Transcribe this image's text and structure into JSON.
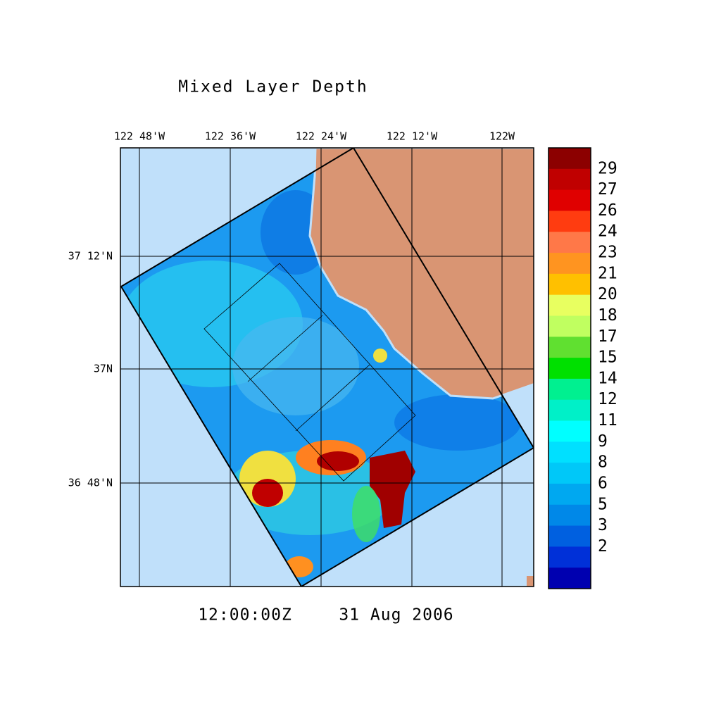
{
  "title": "Mixed Layer Depth",
  "longitude_labels": [
    "122 48'W",
    "122 36'W",
    "122 24'W",
    "122 12'W",
    "122W"
  ],
  "latitude_labels": [
    "37 12'N",
    "37N",
    "36 48'N"
  ],
  "colorbar": {
    "labels": [
      29,
      27,
      26,
      24,
      23,
      21,
      20,
      18,
      17,
      15,
      14,
      12,
      11,
      9,
      8,
      6,
      5,
      3,
      2
    ],
    "colors": [
      "#8c0000",
      "#c00000",
      "#e00000",
      "#ff3c10",
      "#ff7848",
      "#ff9420",
      "#ffc000",
      "#e8ff60",
      "#c0ff60",
      "#60e030",
      "#00e000",
      "#00f090",
      "#00f0c8",
      "#00ffff",
      "#00e0ff",
      "#00c8f8",
      "#00a8f0",
      "#0088e8",
      "#0060e0",
      "#0030d8",
      "#0000b0"
    ]
  },
  "time": "12:00:00Z",
  "date": "31 Aug 2006"
}
